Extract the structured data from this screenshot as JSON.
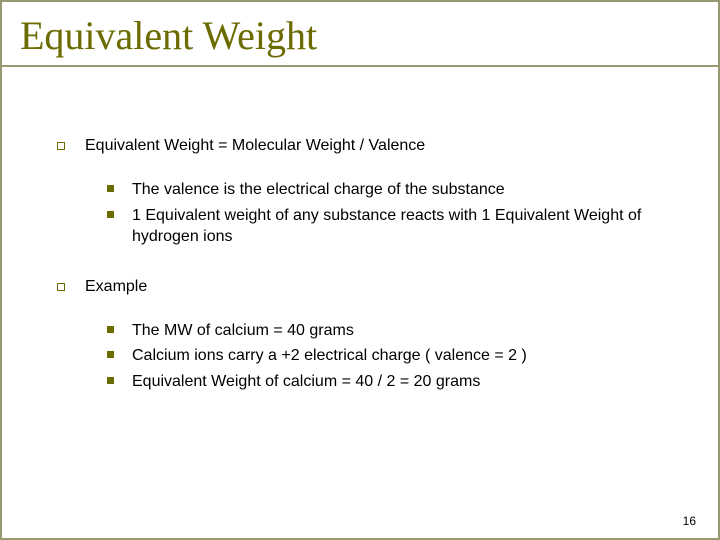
{
  "slide": {
    "title": "Equivalent Weight",
    "page_number": "16",
    "background_color": "#ffffff",
    "border_color": "#9a9a72",
    "title_color": "#6b6b00",
    "title_fontsize": 40,
    "title_font": "Times New Roman",
    "body_color": "#000000",
    "body_fontsize": 16,
    "bullet_color": "#6b6b00",
    "sections": [
      {
        "heading": "Equivalent Weight  =  Molecular Weight / Valence",
        "items": [
          "The valence is the electrical  charge of the substance",
          "1 Equivalent weight of any substance reacts with 1 Equivalent Weight of hydrogen ions"
        ]
      },
      {
        "heading": "Example",
        "items": [
          "The MW of calcium  =  40 grams",
          "Calcium ions carry a +2 electrical charge ( valence = 2 )",
          "Equivalent Weight of calcium = 40 / 2 = 20 grams"
        ]
      }
    ]
  }
}
